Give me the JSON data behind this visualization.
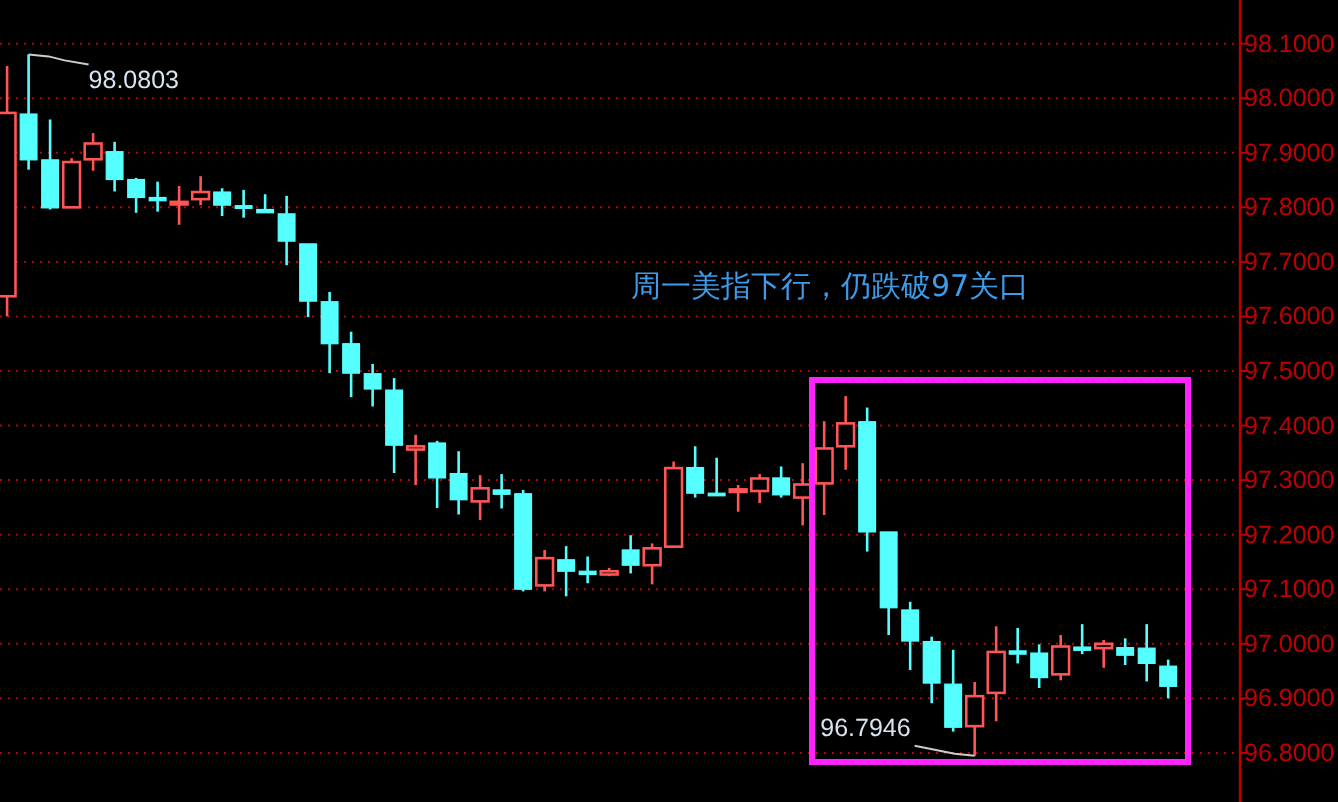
{
  "chart_data": {
    "type": "candlestick",
    "categories": [
      null,
      null,
      null,
      null,
      null,
      null,
      null,
      null,
      null,
      null,
      null,
      null,
      null,
      null,
      null,
      null,
      null,
      null,
      null,
      null,
      null,
      null,
      null,
      null,
      null,
      null,
      null,
      null,
      null,
      null,
      null,
      null,
      null,
      null,
      null,
      null,
      null,
      null,
      null,
      null,
      null,
      null,
      null,
      null,
      null,
      null,
      null,
      null,
      null,
      null,
      null,
      null,
      null,
      null,
      null
    ],
    "ohlc": [
      [
        97.637,
        98.059,
        97.6,
        97.973
      ],
      [
        97.971,
        98.0803,
        97.869,
        97.887
      ],
      [
        97.887,
        97.961,
        97.796,
        97.799
      ],
      [
        97.8,
        97.89,
        97.799,
        97.883
      ],
      [
        97.888,
        97.936,
        97.867,
        97.917
      ],
      [
        97.902,
        97.92,
        97.829,
        97.851
      ],
      [
        97.851,
        97.854,
        97.79,
        97.818
      ],
      [
        97.818,
        97.847,
        97.792,
        97.812
      ],
      [
        97.808,
        97.839,
        97.768,
        97.81
      ],
      [
        97.815,
        97.857,
        97.804,
        97.828
      ],
      [
        97.828,
        97.835,
        97.784,
        97.804
      ],
      [
        97.803,
        97.832,
        97.781,
        97.798
      ],
      [
        97.796,
        97.824,
        97.79,
        97.79
      ],
      [
        97.788,
        97.821,
        97.694,
        97.738
      ],
      [
        97.733,
        97.733,
        97.599,
        97.628
      ],
      [
        97.627,
        97.645,
        97.496,
        97.55
      ],
      [
        97.55,
        97.572,
        97.452,
        97.496
      ],
      [
        97.495,
        97.513,
        97.435,
        97.467
      ],
      [
        97.465,
        97.487,
        97.313,
        97.364
      ],
      [
        97.356,
        97.383,
        97.291,
        97.362
      ],
      [
        97.368,
        97.372,
        97.249,
        97.304
      ],
      [
        97.312,
        97.353,
        97.237,
        97.264
      ],
      [
        97.261,
        97.309,
        97.227,
        97.285
      ],
      [
        97.282,
        97.311,
        97.248,
        97.274
      ],
      [
        97.275,
        97.282,
        97.096,
        97.1
      ],
      [
        97.107,
        97.172,
        97.096,
        97.157
      ],
      [
        97.154,
        97.179,
        97.087,
        97.133
      ],
      [
        97.133,
        97.16,
        97.111,
        97.127
      ],
      [
        97.127,
        97.139,
        97.124,
        97.133
      ],
      [
        97.172,
        97.199,
        97.129,
        97.144
      ],
      [
        97.144,
        97.184,
        97.109,
        97.175
      ],
      [
        97.178,
        97.334,
        97.176,
        97.322
      ],
      [
        97.323,
        97.362,
        97.268,
        97.276
      ],
      [
        97.276,
        97.341,
        97.272,
        97.273
      ],
      [
        97.279,
        97.291,
        97.242,
        97.283
      ],
      [
        97.28,
        97.311,
        97.258,
        97.303
      ],
      [
        97.304,
        97.325,
        97.268,
        97.273
      ],
      [
        97.268,
        97.331,
        97.217,
        97.292
      ],
      [
        97.294,
        97.408,
        97.236,
        97.358
      ],
      [
        97.362,
        97.454,
        97.319,
        97.404
      ],
      [
        97.407,
        97.433,
        97.169,
        97.205
      ],
      [
        97.205,
        97.205,
        97.016,
        97.066
      ],
      [
        97.062,
        97.077,
        96.952,
        97.005
      ],
      [
        97.004,
        97.013,
        96.891,
        96.928
      ],
      [
        96.926,
        96.989,
        96.839,
        96.847
      ],
      [
        96.849,
        96.93,
        96.7946,
        96.904
      ],
      [
        96.91,
        97.032,
        96.858,
        96.985
      ],
      [
        96.987,
        97.029,
        96.964,
        96.981
      ],
      [
        96.983,
        96.999,
        96.919,
        96.938
      ],
      [
        96.944,
        97.016,
        96.933,
        96.995
      ],
      [
        96.994,
        97.036,
        96.981,
        96.988
      ],
      [
        96.992,
        97.007,
        96.956,
        97.0
      ],
      [
        96.993,
        97.01,
        96.961,
        96.979
      ],
      [
        96.992,
        97.036,
        96.931,
        96.964
      ],
      [
        96.959,
        96.971,
        96.9,
        96.922
      ]
    ],
    "colors": [
      "#ff5555",
      "#55ffff",
      "#55ffff",
      "#ff5555",
      "#ff5555",
      "#55ffff",
      "#55ffff",
      "#55ffff",
      "#ff5555",
      "#ff5555",
      "#55ffff",
      "#55ffff",
      "#55ffff",
      "#55ffff",
      "#55ffff",
      "#55ffff",
      "#55ffff",
      "#55ffff",
      "#55ffff",
      "#ff5555",
      "#55ffff",
      "#55ffff",
      "#ff5555",
      "#55ffff",
      "#55ffff",
      "#ff5555",
      "#55ffff",
      "#55ffff",
      "#ff5555",
      "#55ffff",
      "#ff5555",
      "#ff5555",
      "#55ffff",
      "#55ffff",
      "#ff5555",
      "#ff5555",
      "#55ffff",
      "#ff5555",
      "#ff5555",
      "#ff5555",
      "#55ffff",
      "#55ffff",
      "#55ffff",
      "#55ffff",
      "#55ffff",
      "#ff5555",
      "#ff5555",
      "#55ffff",
      "#55ffff",
      "#ff5555",
      "#55ffff",
      "#ff5555",
      "#55ffff",
      "#55ffff",
      "#55ffff"
    ],
    "ylim": [
      96.71,
      98.18
    ],
    "yticks": [
      {
        "value": 96.8,
        "label": "96.8000"
      },
      {
        "value": 96.9,
        "label": "96.9000"
      },
      {
        "value": 97.0,
        "label": "97.0000"
      },
      {
        "value": 97.1,
        "label": "97.1000"
      },
      {
        "value": 97.2,
        "label": "97.2000"
      },
      {
        "value": 97.3,
        "label": "97.3000"
      },
      {
        "value": 97.4,
        "label": "97.4000"
      },
      {
        "value": 97.5,
        "label": "97.5000"
      },
      {
        "value": 97.6,
        "label": "97.6000"
      },
      {
        "value": 97.7,
        "label": "97.7000"
      },
      {
        "value": 97.8,
        "label": "97.8000"
      },
      {
        "value": 97.9,
        "label": "97.9000"
      },
      {
        "value": 98.0,
        "label": "98.0000"
      },
      {
        "value": 98.1,
        "label": "98.1000"
      }
    ],
    "grid": "y",
    "annotations": [
      "98.0803",
      "96.7946",
      "周一美指下行，仍跌破97关口"
    ]
  }
}
